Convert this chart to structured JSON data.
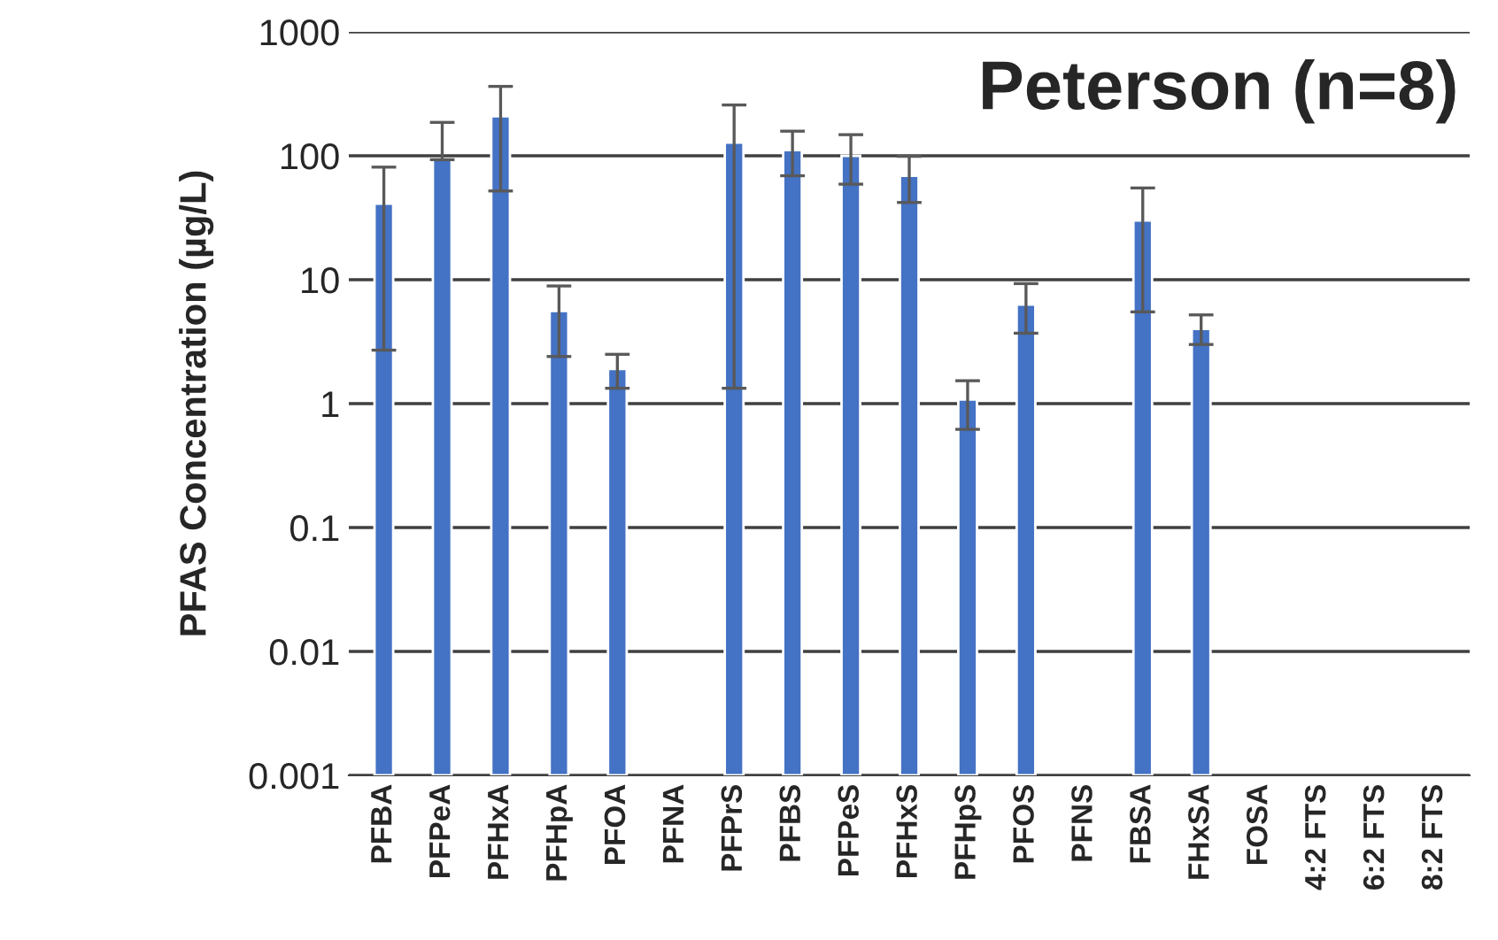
{
  "chart_data": {
    "type": "bar",
    "title": "Peterson (n=8)",
    "ylabel": "PFAS Concentration (µg/L)",
    "categories": [
      "PFBA",
      "PFPeA",
      "PFHxA",
      "PFHpA",
      "PFOA",
      "PFNA",
      "PFPrS",
      "PFBS",
      "PFPeS",
      "PFHxS",
      "PFHpS",
      "PFOS",
      "PFNS",
      "FBSA",
      "FHxSA",
      "FOSA",
      "4:2 FTS",
      "6:2 FTS",
      "8:2 FTS"
    ],
    "values": [
      41,
      93,
      208,
      5.6,
      1.9,
      null,
      128,
      111,
      100,
      69,
      1.08,
      6.3,
      null,
      30,
      4.0,
      null,
      null,
      null,
      null
    ],
    "errors": [
      [
        2.7,
        81
      ],
      [
        93,
        186
      ],
      [
        52,
        363
      ],
      [
        2.4,
        8.9
      ],
      [
        1.33,
        2.5
      ],
      null,
      [
        1.33,
        257
      ],
      [
        69,
        158
      ],
      [
        59,
        148
      ],
      [
        42,
        99
      ],
      [
        0.62,
        1.53
      ],
      [
        3.7,
        9.3
      ],
      null,
      [
        5.5,
        55
      ],
      [
        3.0,
        5.2
      ],
      null,
      null,
      null,
      null
    ],
    "color": "#4472c4",
    "log": true,
    "ylim": [
      0.001,
      1000
    ],
    "yticks": [
      0.001,
      0.01,
      0.1,
      1,
      10,
      100,
      1000
    ],
    "grid": "y"
  }
}
